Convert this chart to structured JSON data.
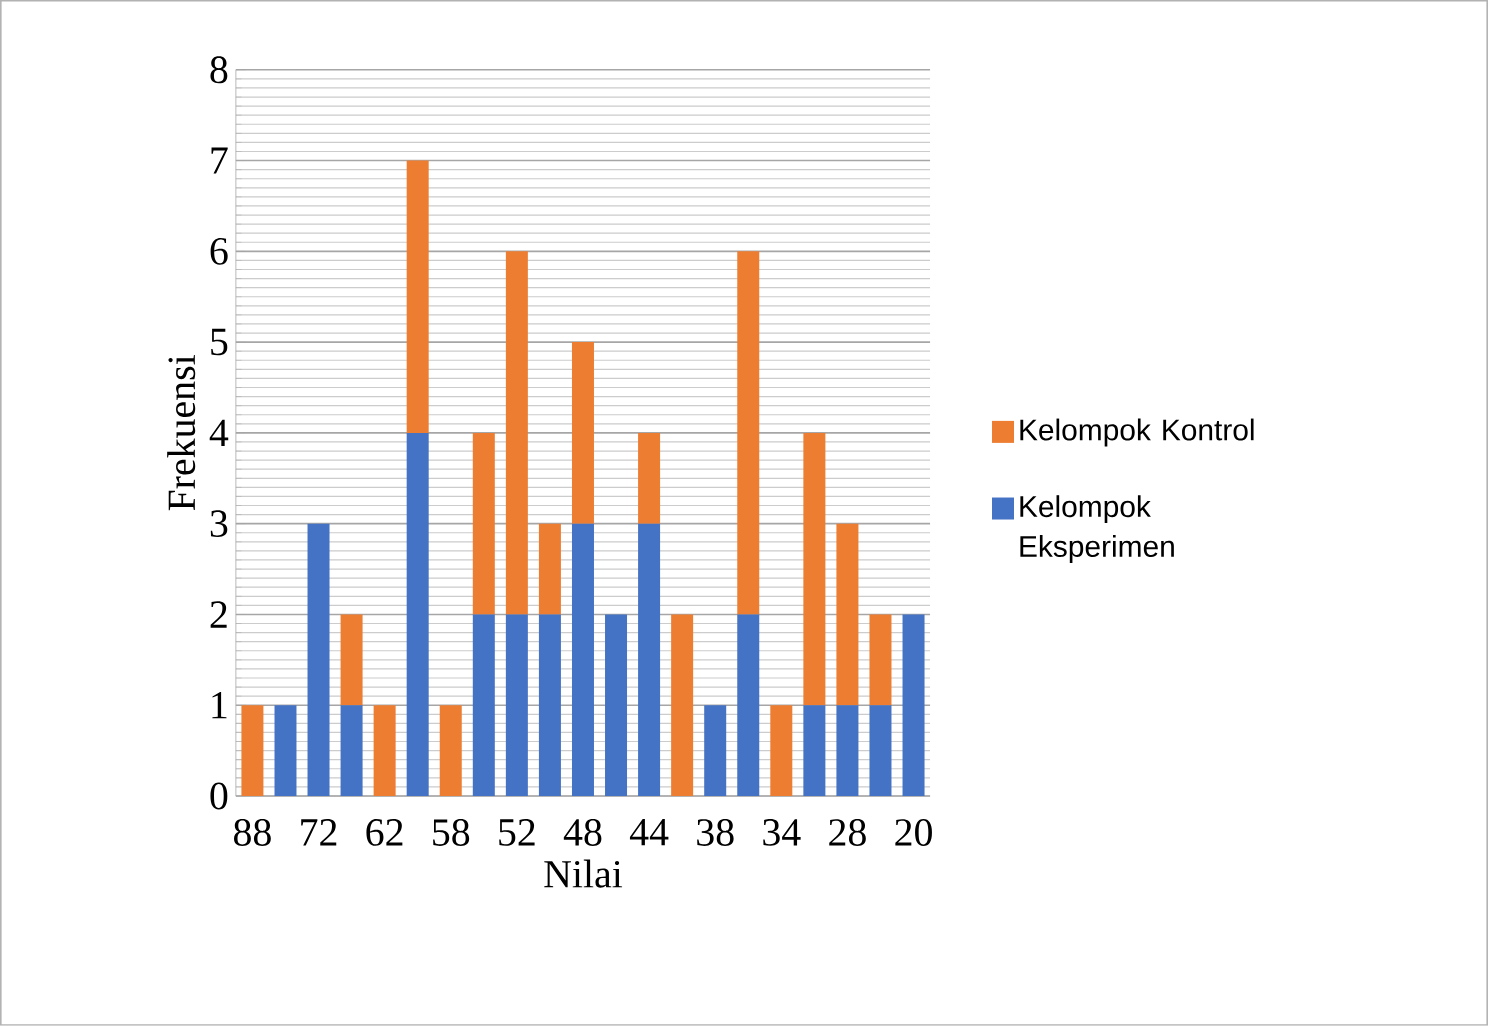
{
  "chart_data": {
    "type": "bar",
    "stacked": true,
    "xlabel": "Nilai",
    "ylabel": "Frekuensi",
    "categories": [
      "88",
      null,
      "72",
      null,
      "62",
      null,
      "58",
      null,
      "52",
      null,
      "48",
      null,
      "44",
      null,
      "38",
      null,
      "34",
      null,
      "28",
      null,
      "20"
    ],
    "series": [
      {
        "name": "Kelompok Eksperimen",
        "color": "#4472c4",
        "values": [
          0,
          1,
          3,
          1,
          0,
          4,
          0,
          2,
          2,
          2,
          3,
          2,
          3,
          0,
          1,
          2,
          0,
          1,
          1,
          1,
          2
        ]
      },
      {
        "name": "Kelompok Kontrol",
        "color": "#ed7d31",
        "values": [
          1,
          0,
          0,
          1,
          1,
          3,
          1,
          2,
          4,
          1,
          2,
          0,
          1,
          2,
          0,
          4,
          1,
          3,
          2,
          1,
          0
        ]
      }
    ],
    "ylim": [
      0,
      8
    ],
    "yticks": [
      0,
      1,
      2,
      3,
      4,
      5,
      6,
      7,
      8
    ],
    "grid": "y",
    "legend": "right"
  }
}
